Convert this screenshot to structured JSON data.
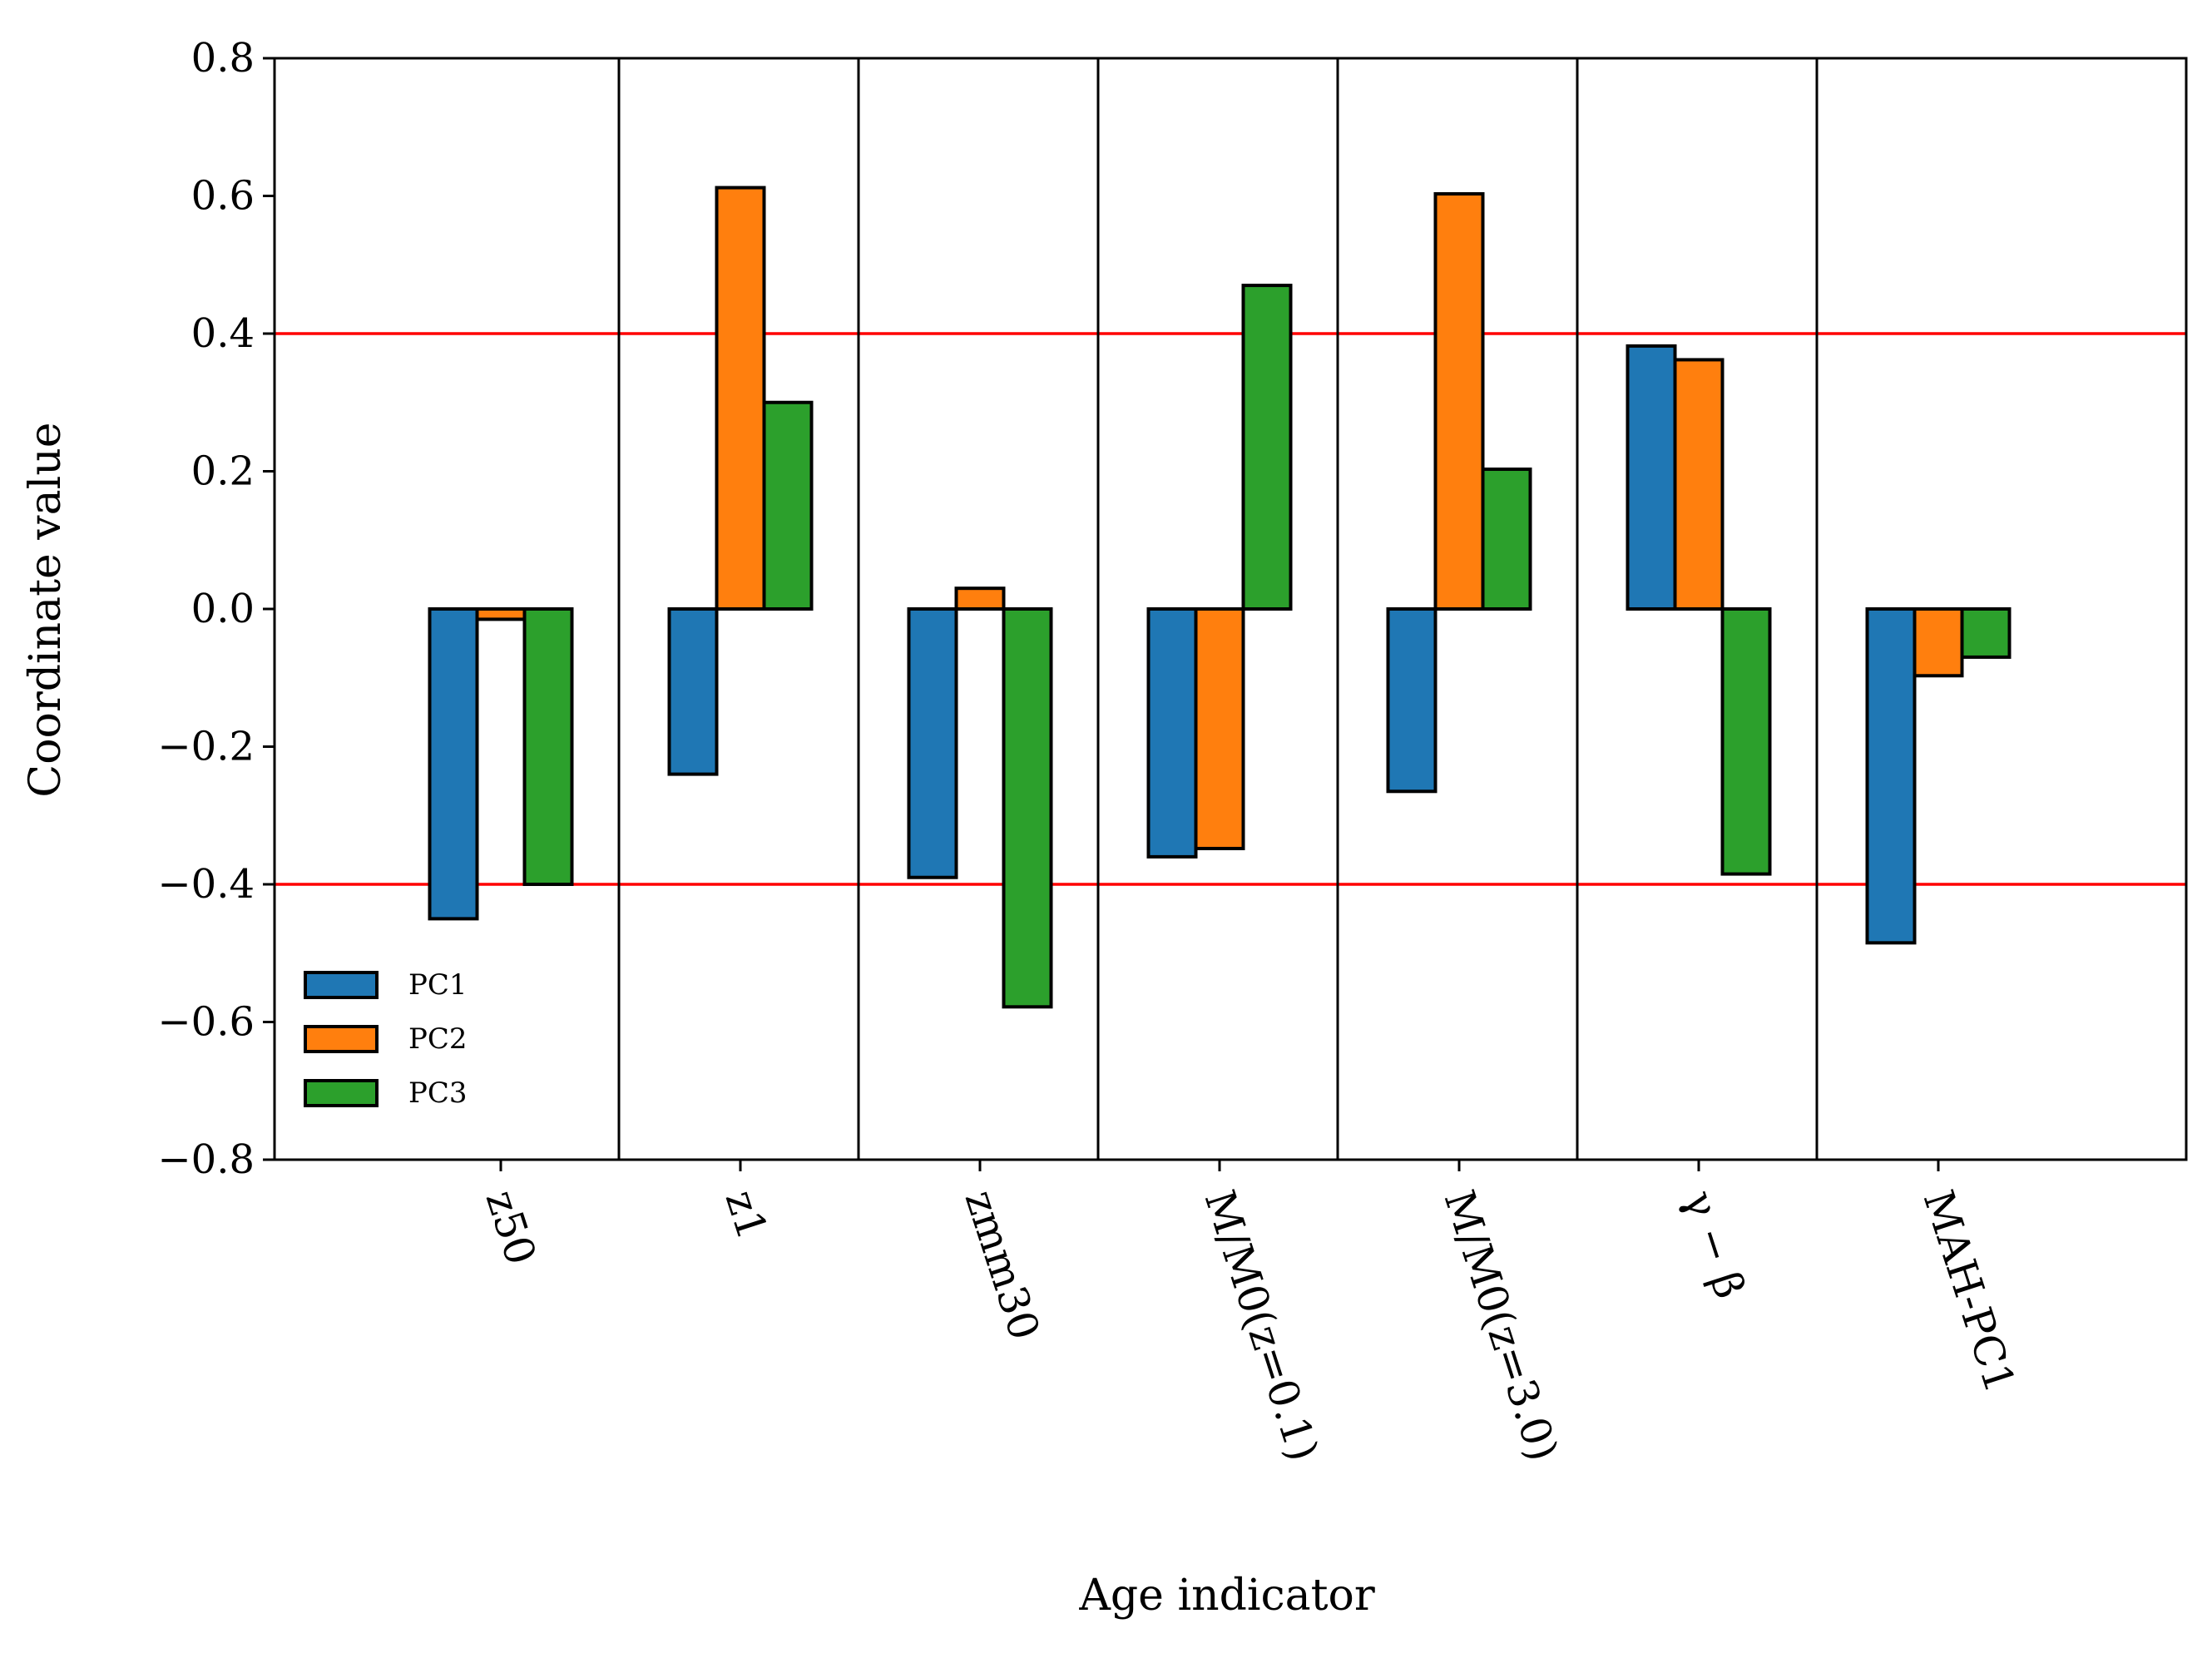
{
  "chart_data": {
    "type": "bar",
    "xlabel": "Age indicator",
    "ylabel": "Coordinate value",
    "ylim": [
      -0.8,
      0.8
    ],
    "yticks": [
      "0.8",
      "0.6",
      "0.4",
      "0.2",
      "0.0",
      "−0.2",
      "−0.4",
      "−0.6",
      "−0.8"
    ],
    "ytick_values": [
      0.8,
      0.6,
      0.4,
      0.2,
      0.0,
      -0.2,
      -0.4,
      -0.6,
      -0.8
    ],
    "categories": [
      "z50",
      "z1",
      "zmm30",
      "M/M0(z=0.1)",
      "M/M0(z=3.0)",
      "γ − β",
      "MAH-PC1"
    ],
    "series": [
      {
        "name": "PC1",
        "color": "#1f77b4",
        "values": [
          -0.45,
          -0.24,
          -0.39,
          -0.36,
          -0.265,
          0.382,
          -0.485
        ]
      },
      {
        "name": "PC2",
        "color": "#ff7f0e",
        "values": [
          -0.015,
          0.612,
          0.03,
          -0.348,
          0.603,
          0.362,
          -0.097
        ]
      },
      {
        "name": "PC3",
        "color": "#2ca02c",
        "values": [
          -0.4,
          0.3,
          -0.578,
          0.47,
          0.203,
          -0.385,
          -0.07
        ]
      }
    ],
    "reference_lines": [
      0.4,
      -0.4
    ],
    "reference_line_color": "#ff0000",
    "legend_position": "lower-left",
    "grid": false
  }
}
